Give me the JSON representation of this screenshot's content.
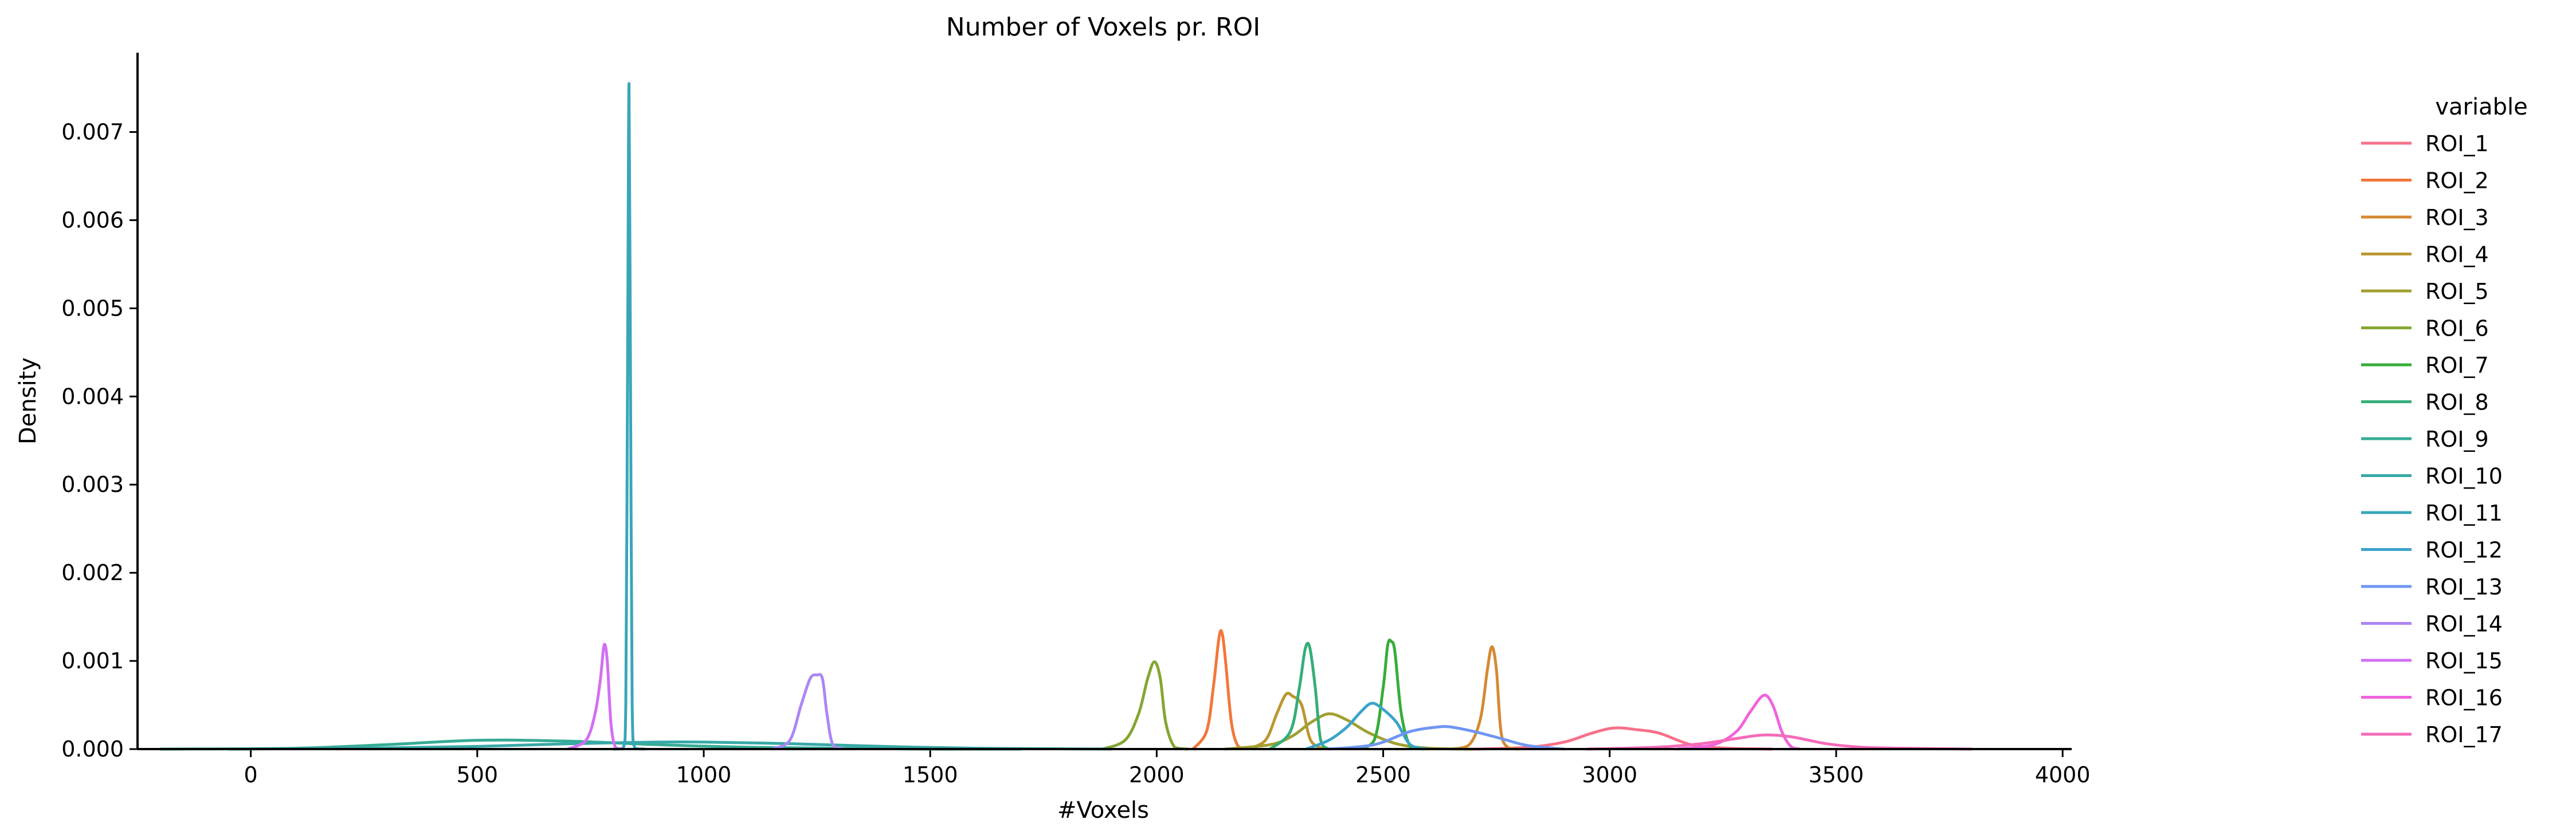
{
  "chart_data": {
    "type": "line",
    "title": "Number of Voxels pr. ROI",
    "xlabel": "#Voxels",
    "ylabel": "Density",
    "xlim": [
      -250,
      4020
    ],
    "ylim": [
      0,
      0.0079
    ],
    "xticks": [
      0,
      500,
      1000,
      1500,
      2000,
      2500,
      3000,
      3500,
      4000
    ],
    "xtick_labels": [
      "0",
      "500",
      "1000",
      "1500",
      "2000",
      "2500",
      "3000",
      "3500",
      "4000"
    ],
    "yticks": [
      0.0,
      0.001,
      0.002,
      0.003,
      0.004,
      0.005,
      0.006,
      0.007
    ],
    "ytick_labels": [
      "0.000",
      "0.001",
      "0.002",
      "0.003",
      "0.004",
      "0.005",
      "0.006",
      "0.007"
    ],
    "grid": false,
    "legend_title": "variable",
    "legend_position": "right",
    "series": [
      {
        "name": "ROI_1",
        "color": "#f77189",
        "x": [
          2700,
          2820,
          2900,
          2960,
          3010,
          3060,
          3110,
          3180,
          3260,
          3360
        ],
        "y": [
          0.0,
          2e-05,
          8e-05,
          0.00018,
          0.00024,
          0.00022,
          0.00018,
          5e-05,
          1e-05,
          0.0
        ]
      },
      {
        "name": "ROI_2",
        "color": "#f3763a",
        "x": [
          2080,
          2110,
          2125,
          2138,
          2145,
          2152,
          2165,
          2180,
          2200
        ],
        "y": [
          0.0,
          0.0002,
          0.0007,
          0.00128,
          0.0013,
          0.001,
          0.0003,
          3e-05,
          0.0
        ]
      },
      {
        "name": "ROI_3",
        "color": "#d58932",
        "x": [
          2650,
          2690,
          2715,
          2730,
          2740,
          2750,
          2760,
          2775,
          2800
        ],
        "y": [
          0.0,
          5e-05,
          0.00035,
          0.0009,
          0.00116,
          0.0009,
          0.0002,
          2e-05,
          0.0
        ]
      },
      {
        "name": "ROI_4",
        "color": "#bb9731",
        "x": [
          2200,
          2240,
          2265,
          2285,
          2300,
          2320,
          2340,
          2370
        ],
        "y": [
          0.0,
          0.0001,
          0.0004,
          0.00062,
          0.0006,
          0.0005,
          0.0001,
          0.0
        ]
      },
      {
        "name": "ROI_5",
        "color": "#a19f31",
        "x": [
          2150,
          2250,
          2300,
          2340,
          2380,
          2420,
          2470,
          2530,
          2600,
          2700
        ],
        "y": [
          0.0,
          5e-05,
          0.00015,
          0.0003,
          0.0004,
          0.00033,
          0.00018,
          6e-05,
          1e-05,
          0.0
        ]
      },
      {
        "name": "ROI_6",
        "color": "#84a631",
        "x": [
          1880,
          1930,
          1960,
          1980,
          1995,
          2008,
          2020,
          2040,
          2070
        ],
        "y": [
          0.0,
          0.0001,
          0.0004,
          0.0008,
          0.00099,
          0.0008,
          0.0003,
          2e-05,
          0.0
        ]
      },
      {
        "name": "ROI_7",
        "color": "#36ad39",
        "x": [
          2440,
          2480,
          2500,
          2510,
          2518,
          2526,
          2540,
          2560,
          2590
        ],
        "y": [
          0.0,
          0.0001,
          0.0007,
          0.00118,
          0.00122,
          0.0011,
          0.0004,
          3e-05,
          0.0
        ]
      },
      {
        "name": "ROI_8",
        "color": "#35ae79",
        "x": [
          2250,
          2295,
          2315,
          2328,
          2338,
          2350,
          2362,
          2380
        ],
        "y": [
          0.0,
          0.0002,
          0.0007,
          0.00114,
          0.00115,
          0.0007,
          0.0001,
          0.0
        ]
      },
      {
        "name": "ROI_9",
        "color": "#36ab94",
        "x": [
          -200,
          100,
          300,
          500,
          700,
          900,
          1100,
          1300,
          1500,
          1700
        ],
        "y": [
          0.0,
          1e-05,
          5e-05,
          0.0001,
          9e-05,
          5e-05,
          2e-05,
          1e-05,
          0.0,
          0.0
        ]
      },
      {
        "name": "ROI_10",
        "color": "#38a9a7",
        "x": [
          -50,
          250,
          500,
          700,
          900,
          1000,
          1200,
          1400,
          1600,
          1900
        ],
        "y": [
          0.0,
          1e-05,
          3e-05,
          6e-05,
          8e-05,
          8e-05,
          6e-05,
          3e-05,
          1e-05,
          0.0
        ]
      },
      {
        "name": "ROI_11",
        "color": "#39a6b8",
        "x": [
          800,
          822,
          828,
          832,
          835,
          838,
          842,
          848,
          870
        ],
        "y": [
          0.0,
          1e-05,
          0.0005,
          0.0045,
          0.00755,
          0.0045,
          0.0005,
          1e-05,
          0.0
        ]
      },
      {
        "name": "ROI_12",
        "color": "#3ba3ca",
        "x": [
          2330,
          2380,
          2420,
          2450,
          2475,
          2500,
          2530,
          2560,
          2600
        ],
        "y": [
          0.0,
          0.0001,
          0.00025,
          0.00042,
          0.00052,
          0.00045,
          0.0003,
          5e-05,
          0.0
        ]
      },
      {
        "name": "ROI_13",
        "color": "#6f96f2",
        "x": [
          2380,
          2480,
          2560,
          2620,
          2650,
          2700,
          2760,
          2820,
          2900
        ],
        "y": [
          0.0,
          5e-05,
          0.0002,
          0.00025,
          0.00025,
          0.0002,
          0.00012,
          4e-05,
          0.0
        ]
      },
      {
        "name": "ROI_14",
        "color": "#ac86f4",
        "x": [
          1150,
          1190,
          1215,
          1235,
          1250,
          1262,
          1272,
          1285,
          1310
        ],
        "y": [
          0.0,
          0.0001,
          0.0005,
          0.0008,
          0.00084,
          0.0008,
          0.0004,
          5e-05,
          0.0
        ]
      },
      {
        "name": "ROI_15",
        "color": "#d36ff3",
        "x": [
          700,
          740,
          760,
          772,
          780,
          787,
          795,
          805,
          820
        ],
        "y": [
          0.0,
          0.0001,
          0.0004,
          0.0008,
          0.00118,
          0.001,
          0.0003,
          2e-05,
          0.0
        ]
      },
      {
        "name": "ROI_16",
        "color": "#f063dd",
        "x": [
          3150,
          3230,
          3280,
          3310,
          3340,
          3360,
          3380,
          3400,
          3420
        ],
        "y": [
          0.0,
          5e-05,
          0.0002,
          0.00042,
          0.00061,
          0.0005,
          0.0002,
          3e-05,
          0.0
        ]
      },
      {
        "name": "ROI_17",
        "color": "#f56bb8",
        "x": [
          2950,
          3100,
          3200,
          3280,
          3340,
          3400,
          3480,
          3560,
          3650,
          3800
        ],
        "y": [
          0.0,
          2e-05,
          6e-05,
          0.00012,
          0.00016,
          0.00014,
          6e-05,
          2e-05,
          1e-05,
          0.0
        ]
      }
    ]
  }
}
